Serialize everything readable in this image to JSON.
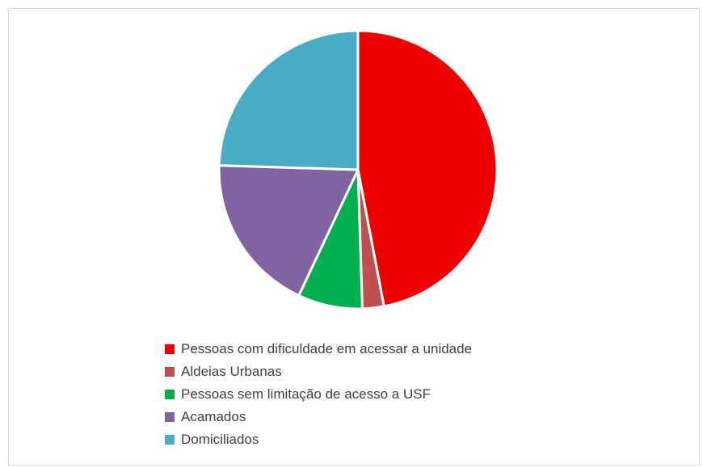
{
  "chart_data": {
    "type": "pie",
    "title": "",
    "slices": [
      {
        "label": "Pessoas com dificuldade em acessar a unidade",
        "value": 47,
        "color": "#ee0000"
      },
      {
        "label": "Aldeias Urbanas",
        "value": 2.5,
        "color": "#c0504d"
      },
      {
        "label": "Pessoas sem limitação de acesso a USF",
        "value": 7.5,
        "color": "#00b050"
      },
      {
        "label": "Acamados",
        "value": 18.5,
        "color": "#8064a2"
      },
      {
        "label": "Domiciliados",
        "value": 24.5,
        "color": "#4bacc6"
      }
    ],
    "start_angle": "12 o'clock, clockwise",
    "legend_position": "bottom"
  }
}
